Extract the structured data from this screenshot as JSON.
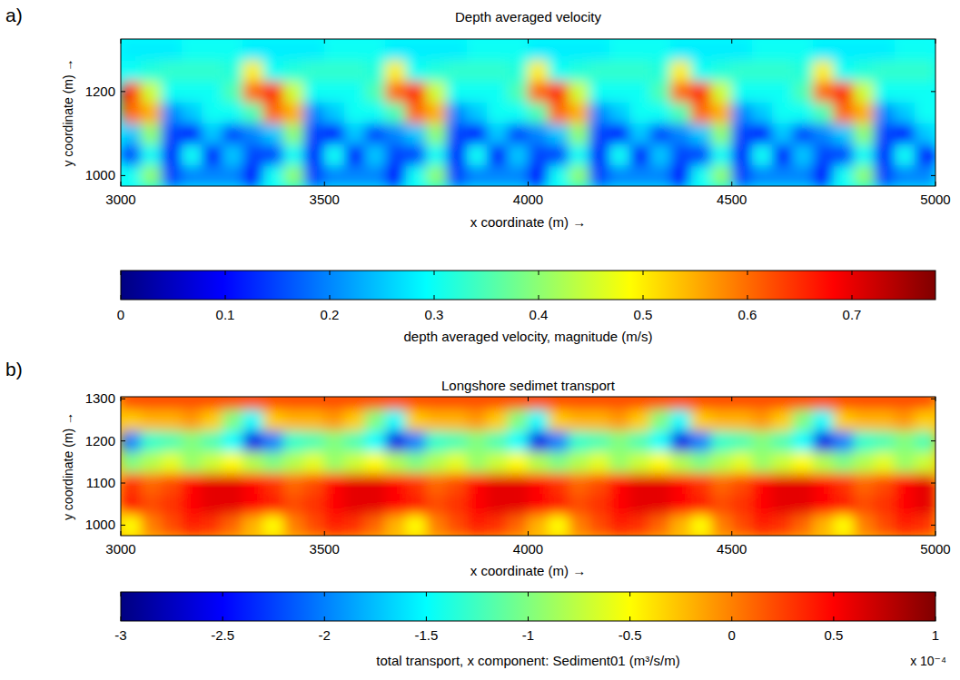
{
  "chart_data": [
    {
      "type": "heatmap",
      "panel_label": "a)",
      "title": "Depth averaged velocity",
      "x_label": "x coordinate (m) →",
      "y_label": "y coordinate (m) →",
      "xlim": [
        3000,
        5000
      ],
      "xticks": [
        3000,
        3500,
        4000,
        4500,
        5000
      ],
      "ylim": [
        975,
        1325
      ],
      "yticks": [
        1000,
        1200
      ],
      "x": [
        3025,
        3075,
        3125,
        3175,
        3225,
        3275,
        3325,
        3375,
        3425,
        3475,
        3525,
        3575,
        3625,
        3675,
        3725,
        3775,
        3825,
        3875,
        3925,
        3975,
        4025,
        4075,
        4125,
        4175,
        4225,
        4275,
        4325,
        4375,
        4425,
        4475,
        4525,
        4575,
        4625,
        4675,
        4725,
        4775,
        4825,
        4875,
        4925,
        4975
      ],
      "y": [
        1000,
        1050,
        1100,
        1150,
        1200,
        1250,
        1300
      ],
      "cells": [
        [
          0.3,
          0.4,
          0.15,
          0.2,
          0.2,
          0.2,
          0.1,
          0.3,
          0.4,
          0.15,
          0.2,
          0.2,
          0.2,
          0.1,
          0.3,
          0.4,
          0.15,
          0.2,
          0.2,
          0.2,
          0.1,
          0.3,
          0.4,
          0.15,
          0.2,
          0.2,
          0.2,
          0.1,
          0.3,
          0.4,
          0.15,
          0.2,
          0.2,
          0.2,
          0.1,
          0.3,
          0.4,
          0.15,
          0.2,
          0.2
        ],
        [
          0.15,
          0.3,
          0.1,
          0.3,
          0.1,
          0.25,
          0.15,
          0.15,
          0.3,
          0.1,
          0.3,
          0.1,
          0.25,
          0.15,
          0.15,
          0.3,
          0.1,
          0.3,
          0.1,
          0.25,
          0.15,
          0.15,
          0.3,
          0.1,
          0.3,
          0.1,
          0.25,
          0.15,
          0.15,
          0.3,
          0.1,
          0.3,
          0.1,
          0.25,
          0.15,
          0.15,
          0.3,
          0.1,
          0.3,
          0.1
        ],
        [
          0.25,
          0.4,
          0.15,
          0.1,
          0.25,
          0.15,
          0.2,
          0.25,
          0.4,
          0.15,
          0.1,
          0.25,
          0.15,
          0.2,
          0.25,
          0.4,
          0.15,
          0.1,
          0.25,
          0.15,
          0.2,
          0.25,
          0.4,
          0.15,
          0.1,
          0.25,
          0.15,
          0.2,
          0.25,
          0.4,
          0.15,
          0.1,
          0.25,
          0.15,
          0.2,
          0.25,
          0.4,
          0.15,
          0.1,
          0.25
        ],
        [
          0.6,
          0.55,
          0.2,
          0.25,
          0.3,
          0.3,
          0.35,
          0.6,
          0.55,
          0.2,
          0.25,
          0.3,
          0.3,
          0.35,
          0.6,
          0.55,
          0.2,
          0.25,
          0.3,
          0.3,
          0.35,
          0.6,
          0.55,
          0.2,
          0.25,
          0.3,
          0.3,
          0.35,
          0.6,
          0.55,
          0.2,
          0.25,
          0.3,
          0.3,
          0.35,
          0.6,
          0.55,
          0.2,
          0.25,
          0.3
        ],
        [
          0.65,
          0.45,
          0.3,
          0.3,
          0.3,
          0.35,
          0.6,
          0.65,
          0.45,
          0.3,
          0.3,
          0.3,
          0.35,
          0.6,
          0.65,
          0.45,
          0.3,
          0.3,
          0.3,
          0.35,
          0.6,
          0.65,
          0.45,
          0.3,
          0.3,
          0.3,
          0.35,
          0.6,
          0.65,
          0.45,
          0.3,
          0.3,
          0.3,
          0.35,
          0.6,
          0.65,
          0.45,
          0.3,
          0.3,
          0.3
        ],
        [
          0.3,
          0.32,
          0.33,
          0.33,
          0.33,
          0.32,
          0.5,
          0.3,
          0.32,
          0.33,
          0.33,
          0.33,
          0.32,
          0.5,
          0.3,
          0.32,
          0.33,
          0.33,
          0.33,
          0.32,
          0.5,
          0.3,
          0.32,
          0.33,
          0.33,
          0.33,
          0.32,
          0.5,
          0.3,
          0.32,
          0.33,
          0.33,
          0.33,
          0.32,
          0.5,
          0.3,
          0.32,
          0.33,
          0.33,
          0.33
        ],
        [
          0.28,
          0.28,
          0.28,
          0.3,
          0.3,
          0.3,
          0.28,
          0.28,
          0.28,
          0.28,
          0.3,
          0.3,
          0.3,
          0.28,
          0.28,
          0.28,
          0.28,
          0.3,
          0.3,
          0.3,
          0.28,
          0.28,
          0.28,
          0.28,
          0.3,
          0.3,
          0.3,
          0.28,
          0.28,
          0.28,
          0.28,
          0.3,
          0.3,
          0.3,
          0.28,
          0.28,
          0.28,
          0.28,
          0.3,
          0.3
        ]
      ],
      "colorbar": {
        "label": "depth averaged velocity, magnitude (m/s)",
        "range": [
          0,
          0.78
        ],
        "ticks": [
          0,
          0.1,
          0.2,
          0.3,
          0.4,
          0.5,
          0.6,
          0.7
        ]
      }
    },
    {
      "type": "heatmap",
      "panel_label": "b)",
      "title": "Longshore sedimet transport",
      "x_label": "x coordinate (m) →",
      "y_label": "y coordinate (m) →",
      "xlim": [
        3000,
        5000
      ],
      "xticks": [
        3000,
        3500,
        4000,
        4500,
        5000
      ],
      "ylim": [
        975,
        1305
      ],
      "yticks": [
        1000,
        1100,
        1200,
        1300
      ],
      "x": [
        3025,
        3075,
        3125,
        3175,
        3225,
        3275,
        3325,
        3375,
        3425,
        3475,
        3525,
        3575,
        3625,
        3675,
        3725,
        3775,
        3825,
        3875,
        3925,
        3975,
        4025,
        4075,
        4125,
        4175,
        4225,
        4275,
        4325,
        4375,
        4425,
        4475,
        4525,
        4575,
        4625,
        4675,
        4725,
        4775,
        4825,
        4875,
        4925,
        4975
      ],
      "y": [
        1000,
        1050,
        1100,
        1150,
        1200,
        1250,
        1300
      ],
      "cells": [
        [
          -0.5,
          0,
          0.2,
          0.4,
          0.3,
          0.1,
          -0.2,
          -0.5,
          0,
          0.2,
          0.4,
          0.3,
          0.1,
          -0.2,
          -0.5,
          0,
          0.2,
          0.4,
          0.3,
          0.1,
          -0.2,
          -0.5,
          0,
          0.2,
          0.4,
          0.3,
          0.1,
          -0.2,
          -0.5,
          0,
          0.2,
          0.4,
          0.3,
          0.1,
          -0.2,
          -0.5,
          0,
          0.2,
          0.4,
          0.3
        ],
        [
          0.4,
          0.2,
          0.3,
          0.5,
          0.6,
          0.6,
          0.5,
          0.4,
          0.2,
          0.3,
          0.5,
          0.6,
          0.6,
          0.5,
          0.4,
          0.2,
          0.3,
          0.5,
          0.6,
          0.6,
          0.5,
          0.4,
          0.2,
          0.3,
          0.5,
          0.6,
          0.6,
          0.5,
          0.4,
          0.2,
          0.3,
          0.5,
          0.6,
          0.6,
          0.5,
          0.4,
          0.2,
          0.3,
          0.5,
          0.6
        ],
        [
          0.3,
          0.1,
          0.2,
          0.5,
          0.6,
          0.6,
          0.5,
          0.3,
          0.1,
          0.2,
          0.5,
          0.6,
          0.6,
          0.5,
          0.3,
          0.1,
          0.2,
          0.5,
          0.6,
          0.6,
          0.5,
          0.3,
          0.1,
          0.2,
          0.5,
          0.6,
          0.6,
          0.5,
          0.3,
          0.1,
          0.2,
          0.5,
          0.6,
          0.6,
          0.5,
          0.3,
          0.1,
          0.2,
          0.5,
          0.6
        ],
        [
          -1,
          -0.8,
          -0.6,
          -0.9,
          -0.7,
          -0.5,
          -0.8,
          -1,
          -0.8,
          -0.6,
          -0.9,
          -0.7,
          -0.5,
          -0.8,
          -1,
          -0.8,
          -0.6,
          -0.9,
          -0.7,
          -0.5,
          -0.8,
          -1,
          -0.8,
          -0.6,
          -0.9,
          -0.7,
          -0.5,
          -0.8,
          -1,
          -0.8,
          -0.6,
          -0.9,
          -0.7,
          -0.5,
          -0.8,
          -1,
          -0.8,
          -0.6,
          -0.9,
          -0.7
        ],
        [
          -2,
          -1.3,
          -1.2,
          -1,
          -1.2,
          -1.5,
          -2.6,
          -2,
          -1.3,
          -1.2,
          -1,
          -1.2,
          -1.5,
          -2.6,
          -2,
          -1.3,
          -1.2,
          -1,
          -1.2,
          -1.5,
          -2.6,
          -2,
          -1.3,
          -1.2,
          -1,
          -1.2,
          -1.5,
          -2.6,
          -2,
          -1.3,
          -1.2,
          -1,
          -1.2,
          -1.5,
          -2.6,
          -2,
          -1.3,
          -1.2,
          -1,
          -1.2
        ],
        [
          -0.3,
          -0.2,
          -0.2,
          -0.1,
          -0.3,
          -1,
          -1.5,
          -0.3,
          -0.2,
          -0.2,
          -0.1,
          -0.3,
          -1,
          -1.5,
          -0.3,
          -0.2,
          -0.2,
          -0.1,
          -0.3,
          -1,
          -1.5,
          -0.3,
          -0.2,
          -0.2,
          -0.1,
          -0.3,
          -1,
          -1.5,
          -0.3,
          -0.2,
          -0.2,
          -0.1,
          -0.3,
          -1,
          -1.5,
          -0.3,
          -0.2,
          -0.2,
          -0.1,
          -0.3
        ],
        [
          0.2,
          0.2,
          0.2,
          0.2,
          0.2,
          0.2,
          0.2,
          0.2,
          0.2,
          0.2,
          0.2,
          0.2,
          0.2,
          0.2,
          0.2,
          0.2,
          0.2,
          0.2,
          0.2,
          0.2,
          0.2,
          0.2,
          0.2,
          0.2,
          0.2,
          0.2,
          0.2,
          0.2,
          0.2,
          0.2,
          0.2,
          0.2,
          0.2,
          0.2,
          0.2,
          0.2,
          0.2,
          0.2,
          0.2,
          0.2
        ]
      ],
      "colorbar": {
        "label": "total transport, x component: Sediment01 (m³/s/m)",
        "scale_label": "x 10⁻⁴",
        "range": [
          -3,
          1
        ],
        "ticks": [
          -3,
          -2.5,
          -2,
          -1.5,
          -1,
          -0.5,
          0,
          0.5,
          1
        ]
      }
    }
  ]
}
